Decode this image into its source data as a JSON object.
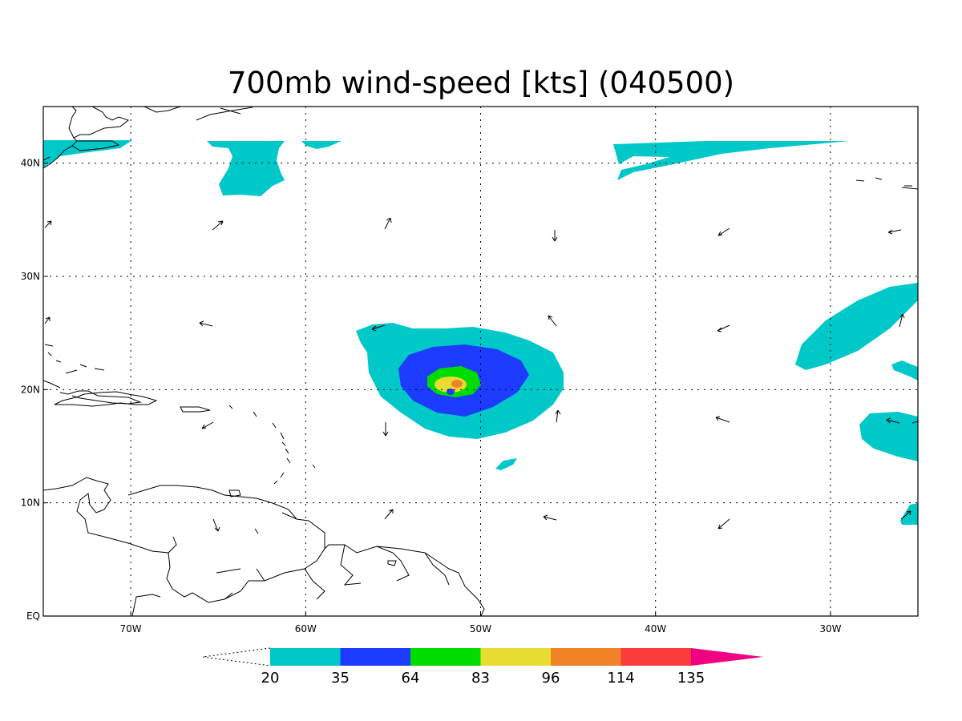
{
  "title": "700mb wind-speed [kts] (040500)",
  "map": {
    "lon_range": [
      -75,
      -25
    ],
    "lat_range": [
      0,
      45
    ],
    "x_ticks": [
      {
        "lon": -70,
        "label": "70W"
      },
      {
        "lon": -60,
        "label": "60W"
      },
      {
        "lon": -50,
        "label": "50W"
      },
      {
        "lon": -40,
        "label": "40W"
      },
      {
        "lon": -30,
        "label": "30W"
      }
    ],
    "y_ticks": [
      {
        "lat": 0,
        "label": "EQ"
      },
      {
        "lat": 10,
        "label": "10N"
      },
      {
        "lat": 20,
        "label": "20N"
      },
      {
        "lat": 30,
        "label": "30N"
      },
      {
        "lat": 40,
        "label": "40N"
      }
    ],
    "grid": true
  },
  "colorbar": {
    "levels": [
      "20",
      "35",
      "64",
      "83",
      "96",
      "114",
      "135"
    ],
    "colors": [
      "#00c8c8",
      "#1e3cff",
      "#00dc00",
      "#e6dc32",
      "#f08228",
      "#fa3c3c",
      "#f00082"
    ],
    "extend": "both"
  },
  "storm": {
    "center_lon": -51.5,
    "center_lat": 20.5
  }
}
